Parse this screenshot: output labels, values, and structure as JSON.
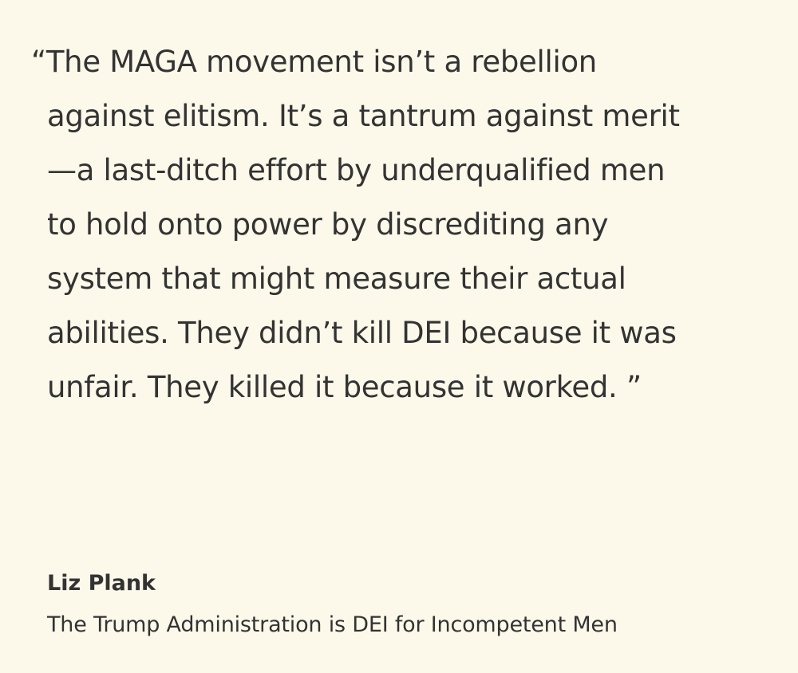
{
  "quote": {
    "lines": [
      "“The MAGA movement isn’t a rebellion",
      "against elitism. It’s a tantrum against merit",
      "—a last-ditch effort by underqualified men",
      "to hold onto power by discrediting any",
      "system that might measure their actual",
      "abilities. They didn’t kill DEI because it was",
      "unfair. They killed it because it worked. ”"
    ]
  },
  "attribution": {
    "author": "Liz Plank",
    "source": "The Trump Administration is DEI for Incompetent Men"
  },
  "colors": {
    "background": "#fcf9ea",
    "text": "#333333"
  }
}
